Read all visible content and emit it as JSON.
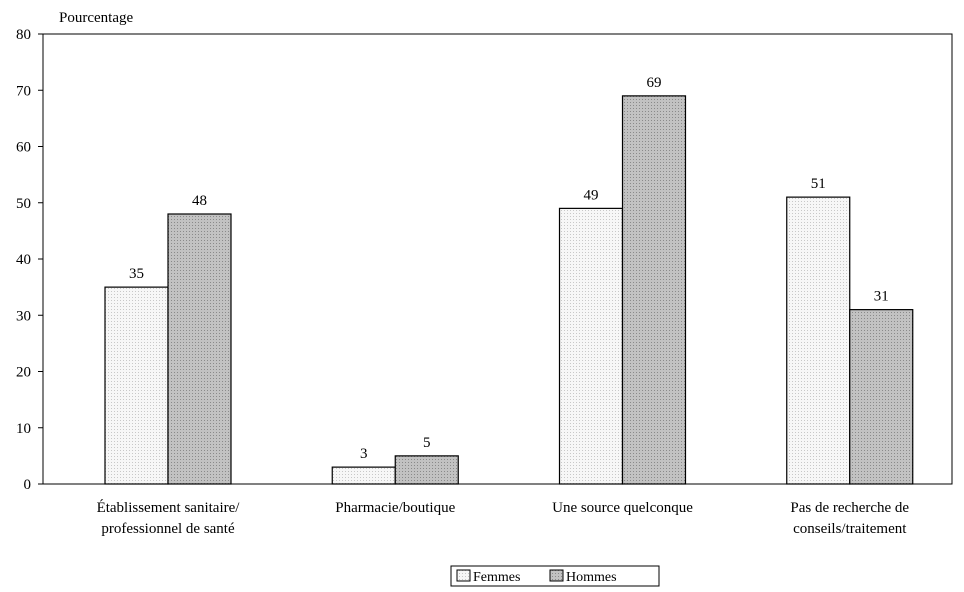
{
  "chart_data": {
    "type": "bar",
    "ylabel": "Pourcentage",
    "ylim": [
      0,
      80
    ],
    "yticks": [
      0,
      10,
      20,
      30,
      40,
      50,
      60,
      70,
      80
    ],
    "categories": [
      [
        "Établissement sanitaire/",
        "professionnel de santé"
      ],
      [
        "Pharmacie/boutique"
      ],
      [
        "Une source quelconque"
      ],
      [
        "Pas de recherche de",
        "conseils/traitement"
      ]
    ],
    "series": [
      {
        "name": "Femmes",
        "values": [
          35,
          3,
          49,
          51
        ],
        "color": "#f2f2f2"
      },
      {
        "name": "Hommes",
        "values": [
          48,
          5,
          69,
          31
        ],
        "color": "#b4b4b4"
      }
    ],
    "legend": "bottom-center",
    "grid": false
  }
}
